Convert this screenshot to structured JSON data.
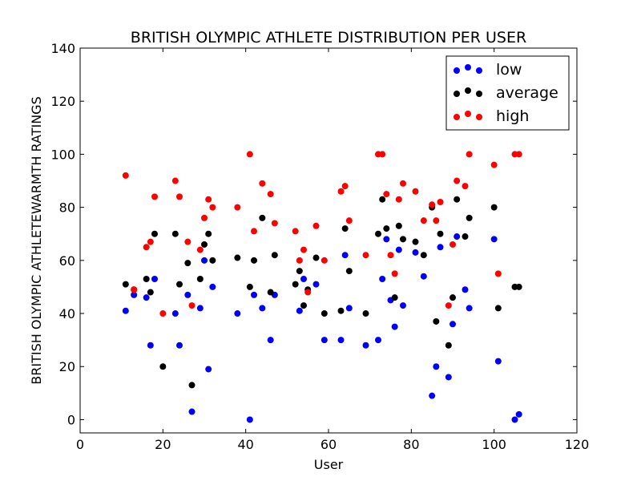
{
  "chart_data": {
    "type": "scatter",
    "title": "BRITISH OLYMPIC ATHLETE DISTRIBUTION PER USER",
    "xlabel": "User",
    "ylabel": "BRITISH OLYMPIC ATHLETEWARMTH RATINGS",
    "xlim": [
      0,
      120
    ],
    "ylim": [
      -5,
      140
    ],
    "xticks": [
      0,
      20,
      40,
      60,
      80,
      100,
      120
    ],
    "yticks": [
      0,
      20,
      40,
      60,
      80,
      100,
      120,
      140
    ],
    "grid": false,
    "legend_position": "top-right",
    "series": [
      {
        "name": "low",
        "color": "#0000ff",
        "points": [
          [
            11,
            41
          ],
          [
            13,
            47
          ],
          [
            16,
            46
          ],
          [
            17,
            28
          ],
          [
            18,
            53
          ],
          [
            23,
            40
          ],
          [
            24,
            28
          ],
          [
            26,
            47
          ],
          [
            27,
            3
          ],
          [
            29,
            42
          ],
          [
            30,
            60
          ],
          [
            31,
            19
          ],
          [
            32,
            50
          ],
          [
            38,
            40
          ],
          [
            41,
            0
          ],
          [
            42,
            47
          ],
          [
            44,
            42
          ],
          [
            46,
            30
          ],
          [
            47,
            47
          ],
          [
            53,
            41
          ],
          [
            54,
            53
          ],
          [
            57,
            51
          ],
          [
            59,
            30
          ],
          [
            63,
            30
          ],
          [
            64,
            62
          ],
          [
            65,
            42
          ],
          [
            69,
            28
          ],
          [
            72,
            30
          ],
          [
            73,
            53
          ],
          [
            74,
            68
          ],
          [
            75,
            45
          ],
          [
            76,
            35
          ],
          [
            77,
            64
          ],
          [
            78,
            43
          ],
          [
            81,
            63
          ],
          [
            83,
            54
          ],
          [
            85,
            9
          ],
          [
            86,
            20
          ],
          [
            87,
            65
          ],
          [
            89,
            16
          ],
          [
            90,
            36
          ],
          [
            91,
            69
          ],
          [
            93,
            49
          ],
          [
            94,
            42
          ],
          [
            100,
            68
          ],
          [
            101,
            22
          ],
          [
            105,
            0
          ],
          [
            106,
            2
          ]
        ]
      },
      {
        "name": "average",
        "color": "#000000",
        "points": [
          [
            11,
            51
          ],
          [
            13,
            49
          ],
          [
            16,
            53
          ],
          [
            17,
            48
          ],
          [
            18,
            70
          ],
          [
            20,
            20
          ],
          [
            23,
            70
          ],
          [
            24,
            51
          ],
          [
            26,
            59
          ],
          [
            27,
            13
          ],
          [
            29,
            53
          ],
          [
            30,
            66
          ],
          [
            31,
            70
          ],
          [
            32,
            60
          ],
          [
            38,
            61
          ],
          [
            41,
            50
          ],
          [
            42,
            60
          ],
          [
            44,
            76
          ],
          [
            46,
            48
          ],
          [
            47,
            62
          ],
          [
            52,
            51
          ],
          [
            53,
            56
          ],
          [
            54,
            43
          ],
          [
            55,
            49
          ],
          [
            57,
            61
          ],
          [
            59,
            40
          ],
          [
            63,
            41
          ],
          [
            64,
            72
          ],
          [
            65,
            56
          ],
          [
            69,
            40
          ],
          [
            72,
            70
          ],
          [
            73,
            83
          ],
          [
            74,
            72
          ],
          [
            76,
            46
          ],
          [
            77,
            73
          ],
          [
            78,
            68
          ],
          [
            81,
            67
          ],
          [
            83,
            62
          ],
          [
            85,
            80
          ],
          [
            86,
            37
          ],
          [
            87,
            70
          ],
          [
            89,
            28
          ],
          [
            90,
            46
          ],
          [
            91,
            83
          ],
          [
            93,
            69
          ],
          [
            94,
            76
          ],
          [
            100,
            80
          ],
          [
            101,
            42
          ],
          [
            105,
            50
          ],
          [
            106,
            50
          ]
        ]
      },
      {
        "name": "high",
        "color": "#ff0000",
        "points": [
          [
            11,
            92
          ],
          [
            13,
            49
          ],
          [
            16,
            65
          ],
          [
            17,
            67
          ],
          [
            18,
            84
          ],
          [
            20,
            40
          ],
          [
            23,
            90
          ],
          [
            24,
            84
          ],
          [
            26,
            67
          ],
          [
            27,
            43
          ],
          [
            29,
            64
          ],
          [
            30,
            76
          ],
          [
            31,
            83
          ],
          [
            32,
            80
          ],
          [
            38,
            80
          ],
          [
            41,
            100
          ],
          [
            42,
            71
          ],
          [
            44,
            89
          ],
          [
            46,
            85
          ],
          [
            47,
            74
          ],
          [
            52,
            71
          ],
          [
            53,
            60
          ],
          [
            54,
            64
          ],
          [
            55,
            48
          ],
          [
            57,
            73
          ],
          [
            59,
            60
          ],
          [
            63,
            86
          ],
          [
            64,
            88
          ],
          [
            65,
            75
          ],
          [
            69,
            62
          ],
          [
            72,
            100
          ],
          [
            73,
            100
          ],
          [
            74,
            85
          ],
          [
            75,
            62
          ],
          [
            76,
            55
          ],
          [
            77,
            83
          ],
          [
            78,
            89
          ],
          [
            81,
            86
          ],
          [
            83,
            75
          ],
          [
            85,
            81
          ],
          [
            86,
            75
          ],
          [
            87,
            82
          ],
          [
            89,
            43
          ],
          [
            90,
            66
          ],
          [
            91,
            90
          ],
          [
            93,
            88
          ],
          [
            94,
            100
          ],
          [
            100,
            96
          ],
          [
            101,
            55
          ],
          [
            105,
            100
          ],
          [
            106,
            100
          ]
        ]
      }
    ]
  }
}
